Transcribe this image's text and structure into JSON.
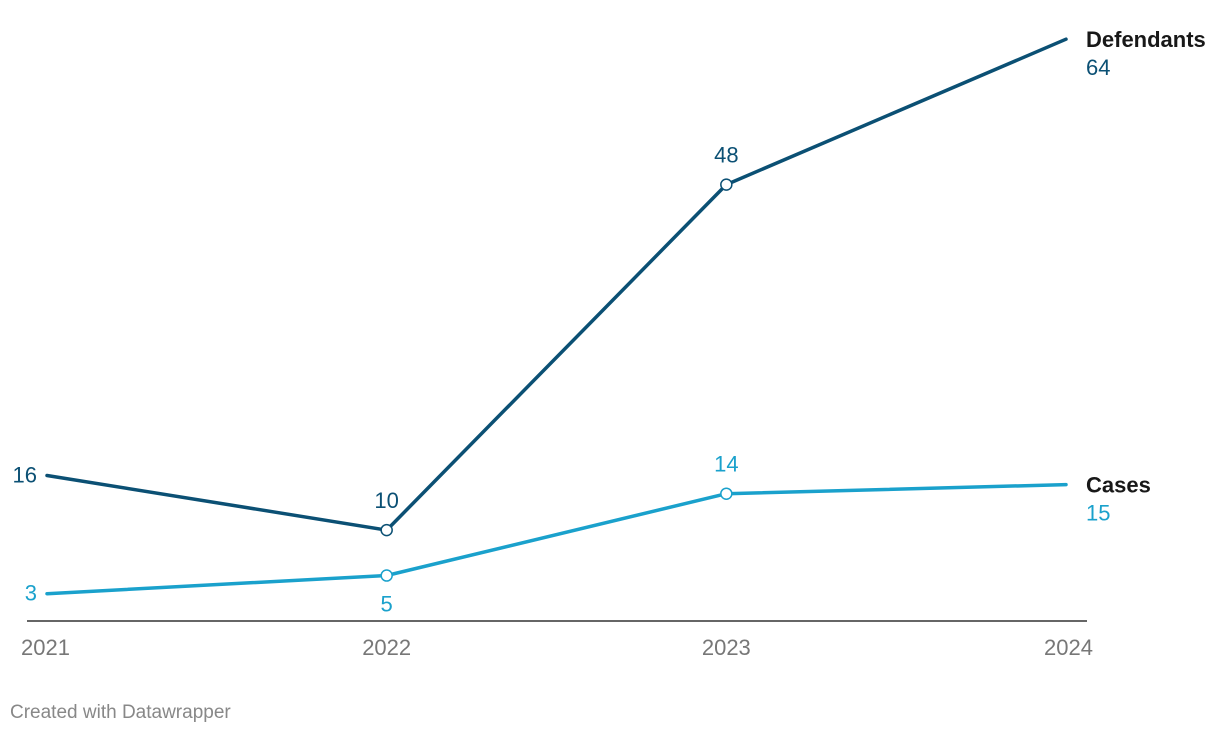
{
  "chart_data": {
    "type": "line",
    "x": [
      "2021",
      "2022",
      "2023",
      "2024"
    ],
    "ylim": [
      0,
      66
    ],
    "grid": false,
    "series": [
      {
        "name": "Defendants",
        "values": [
          16,
          10,
          48,
          64
        ],
        "color": "#0b5074",
        "value_labels": [
          "16",
          "10",
          "48",
          "64"
        ],
        "label_position": "above"
      },
      {
        "name": "Cases",
        "values": [
          3,
          5,
          14,
          15
        ],
        "color": "#1aa1cc",
        "value_labels": [
          "3",
          "5",
          "14",
          "15"
        ],
        "label_position": "mixed"
      }
    ]
  },
  "credit": "Created with Datawrapper"
}
